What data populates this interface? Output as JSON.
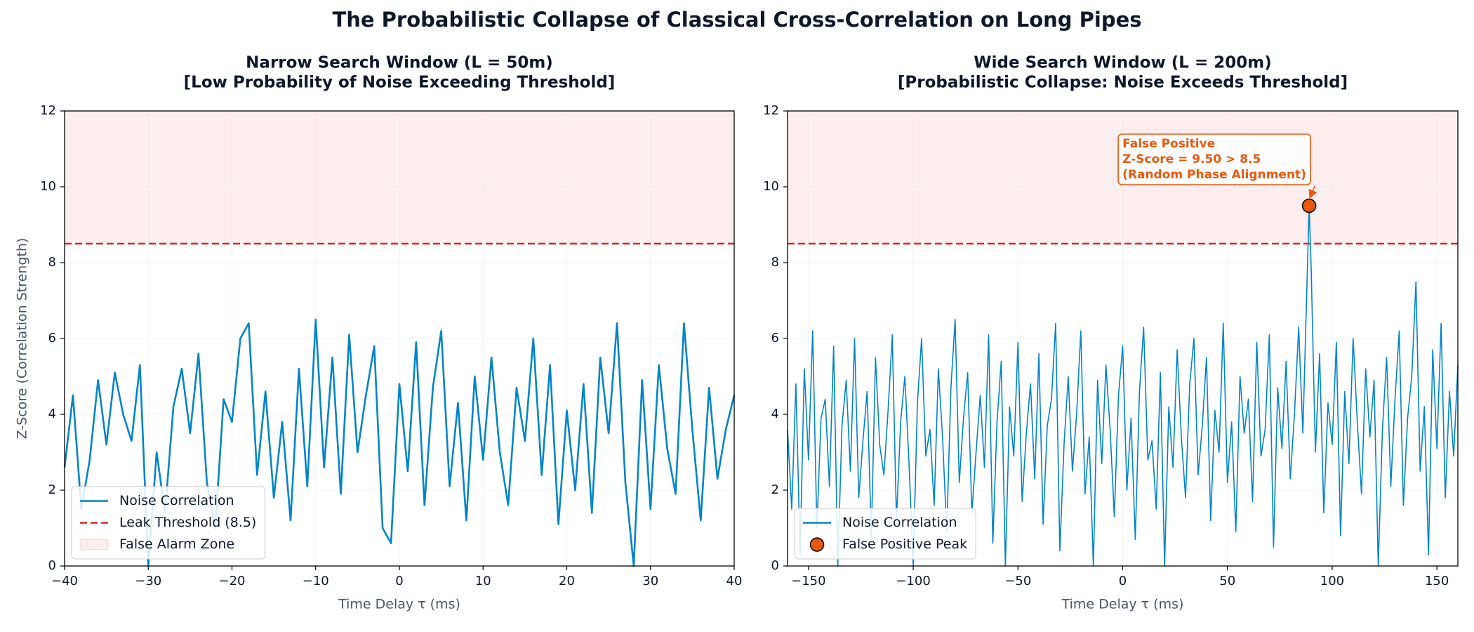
{
  "title": "The Probabilistic Collapse of Classical Cross-Correlation on Long Pipes",
  "chart_data": [
    {
      "type": "line",
      "title": [
        "Narrow Search Window (L = 50m)",
        "[Low Probability of Noise Exceeding Threshold]"
      ],
      "xlabel": "Time Delay τ (ms)",
      "ylabel": "Z-Score (Correlation Strength)",
      "xlim": [
        -40,
        40
      ],
      "ylim": [
        0,
        12
      ],
      "xticks": [
        {
          "value": -40,
          "label": "−40"
        },
        {
          "value": -30,
          "label": "−30"
        },
        {
          "value": -20,
          "label": "−20"
        },
        {
          "value": -10,
          "label": "−10"
        },
        0,
        10,
        20,
        30,
        40
      ],
      "yticks": [
        0,
        2,
        4,
        6,
        8,
        10,
        12
      ],
      "grid": true,
      "legend": "lower left",
      "threshold": {
        "name": "Leak Threshold (8.5)",
        "value": 8.5,
        "color": "#dc2626"
      },
      "zone": {
        "name": "False Alarm Zone",
        "from": 8.5,
        "to": 12,
        "color": "#dc2626"
      },
      "series": [
        {
          "name": "Noise Correlation",
          "color": "#0284c7",
          "x": [
            -40,
            -39,
            -38,
            -37,
            -36,
            -35,
            -34,
            -33,
            -32,
            -31,
            -30,
            -29,
            -28,
            -27,
            -26,
            -25,
            -24,
            -23,
            -22,
            -21,
            -20,
            -19,
            -18,
            -17,
            -16,
            -15,
            -14,
            -13,
            -12,
            -11,
            -10,
            -9,
            -8,
            -7,
            -6,
            -5,
            -4,
            -3,
            -2,
            -1,
            0,
            1,
            2,
            3,
            4,
            5,
            6,
            7,
            8,
            9,
            10,
            11,
            12,
            13,
            14,
            15,
            16,
            17,
            18,
            19,
            20,
            21,
            22,
            23,
            24,
            25,
            26,
            27,
            28,
            29,
            30,
            31,
            32,
            33,
            34,
            35,
            36,
            37,
            38,
            39,
            40
          ],
          "values": [
            2.6,
            4.5,
            1.5,
            2.8,
            4.9,
            3.2,
            5.1,
            4.0,
            3.3,
            5.3,
            0.0,
            3.0,
            1.4,
            4.2,
            5.2,
            3.5,
            5.6,
            2.2,
            1.0,
            4.4,
            3.8,
            6.0,
            6.4,
            2.4,
            4.6,
            1.8,
            3.8,
            1.2,
            5.2,
            2.1,
            6.5,
            2.6,
            5.5,
            1.9,
            6.1,
            3.0,
            4.5,
            5.8,
            1.0,
            0.6,
            4.8,
            2.5,
            5.9,
            1.6,
            4.7,
            6.2,
            2.1,
            4.3,
            1.2,
            5.0,
            2.8,
            5.5,
            3.0,
            1.6,
            4.7,
            3.3,
            6.0,
            2.4,
            5.3,
            1.1,
            4.1,
            2.0,
            4.8,
            1.4,
            5.5,
            3.5,
            6.4,
            2.2,
            0.0,
            4.9,
            1.5,
            5.3,
            3.1,
            1.9,
            6.4,
            3.6,
            1.2,
            4.7,
            2.3,
            3.6,
            4.5
          ]
        }
      ]
    },
    {
      "type": "line",
      "title": [
        "Wide Search Window (L = 200m)",
        "[Probabilistic Collapse: Noise Exceeds Threshold]"
      ],
      "xlabel": "Time Delay τ (ms)",
      "xlim": [
        -160,
        160
      ],
      "ylim": [
        0,
        12
      ],
      "xticks": [
        {
          "value": -150,
          "label": "−150"
        },
        {
          "value": -100,
          "label": "−100"
        },
        {
          "value": -50,
          "label": "−50"
        },
        0,
        50,
        100,
        150
      ],
      "yticks": [
        0,
        2,
        4,
        6,
        8,
        10,
        12
      ],
      "grid": true,
      "legend": "lower left",
      "threshold": {
        "value": 8.5,
        "color": "#dc2626"
      },
      "zone": {
        "from": 8.5,
        "to": 12,
        "color": "#dc2626"
      },
      "annotation": {
        "lines": [
          "False Positive",
          "Z-Score = 9.50 > 8.5",
          "(Random Phase Alignment)"
        ],
        "color": "#ea580c"
      },
      "series": [
        {
          "name": "Noise Correlation",
          "color": "#0284c7",
          "x": [
            -160,
            -158,
            -156,
            -154,
            -152,
            -150,
            -148,
            -146,
            -144,
            -142,
            -140,
            -138,
            -136,
            -134,
            -132,
            -130,
            -128,
            -126,
            -124,
            -122,
            -120,
            -118,
            -116,
            -114,
            -112,
            -110,
            -108,
            -106,
            -104,
            -102,
            -100,
            -98,
            -96,
            -94,
            -92,
            -90,
            -88,
            -86,
            -84,
            -82,
            -80,
            -78,
            -76,
            -74,
            -72,
            -70,
            -68,
            -66,
            -64,
            -62,
            -60,
            -58,
            -56,
            -54,
            -52,
            -50,
            -48,
            -46,
            -44,
            -42,
            -40,
            -38,
            -36,
            -34,
            -32,
            -30,
            -28,
            -26,
            -24,
            -22,
            -20,
            -18,
            -16,
            -14,
            -12,
            -10,
            -8,
            -6,
            -4,
            -2,
            0,
            2,
            4,
            6,
            8,
            10,
            12,
            14,
            16,
            18,
            20,
            22,
            24,
            26,
            28,
            30,
            32,
            34,
            36,
            38,
            40,
            42,
            44,
            46,
            48,
            50,
            52,
            54,
            56,
            58,
            60,
            62,
            64,
            66,
            68,
            70,
            72,
            74,
            76,
            78,
            80,
            82,
            84,
            86,
            89,
            90,
            92,
            94,
            96,
            98,
            100,
            102,
            104,
            106,
            108,
            110,
            112,
            114,
            116,
            118,
            120,
            122,
            124,
            126,
            128,
            130,
            132,
            134,
            136,
            138,
            140,
            142,
            144,
            146,
            148,
            150,
            152,
            154,
            156,
            158,
            160
          ],
          "values": [
            3.6,
            1.5,
            4.8,
            0.3,
            5.2,
            2.8,
            6.2,
            1.0,
            3.9,
            4.4,
            2.1,
            5.8,
            0.0,
            3.7,
            4.9,
            2.5,
            6.0,
            1.8,
            3.3,
            4.6,
            0.8,
            5.5,
            3.2,
            2.4,
            4.1,
            6.1,
            1.2,
            3.8,
            5.0,
            2.7,
            0.0,
            4.3,
            6.0,
            2.9,
            3.6,
            1.6,
            5.2,
            3.4,
            0.9,
            4.7,
            6.5,
            2.2,
            3.9,
            5.1,
            1.4,
            3.0,
            4.5,
            2.6,
            6.1,
            0.6,
            3.8,
            5.4,
            0.0,
            4.2,
            2.9,
            5.9,
            1.7,
            3.5,
            4.8,
            2.3,
            5.6,
            1.1,
            3.7,
            4.4,
            6.4,
            0.4,
            3.2,
            5.0,
            2.5,
            4.0,
            6.2,
            1.9,
            3.4,
            0.0,
            4.9,
            2.7,
            5.3,
            3.6,
            1.3,
            4.5,
            5.8,
            2.0,
            3.9,
            0.7,
            4.6,
            6.3,
            2.8,
            3.3,
            1.5,
            5.1,
            0.0,
            4.2,
            2.6,
            5.7,
            3.4,
            1.8,
            4.8,
            6.0,
            2.4,
            3.7,
            5.5,
            1.2,
            4.1,
            3.0,
            6.4,
            2.2,
            3.8,
            0.9,
            5.0,
            3.5,
            4.4,
            1.7,
            5.9,
            2.9,
            3.6,
            6.1,
            0.5,
            4.7,
            3.1,
            5.4,
            2.3,
            4.0,
            6.3,
            3.5,
            9.5,
            7.8,
            3.0,
            5.6,
            1.4,
            4.3,
            3.2,
            5.9,
            0.8,
            4.6,
            2.7,
            6.0,
            3.8,
            1.9,
            5.2,
            3.4,
            4.9,
            0.0,
            3.6,
            5.5,
            2.1,
            4.4,
            6.2,
            1.6,
            3.9,
            5.0,
            7.5,
            2.5,
            4.2,
            0.3,
            5.7,
            3.1,
            6.4,
            1.8,
            4.6,
            2.9,
            5.3
          ]
        },
        {
          "name": "False Positive Peak",
          "color": "#ea580c",
          "marker": true,
          "x": [
            89
          ],
          "values": [
            9.5
          ]
        }
      ]
    }
  ]
}
